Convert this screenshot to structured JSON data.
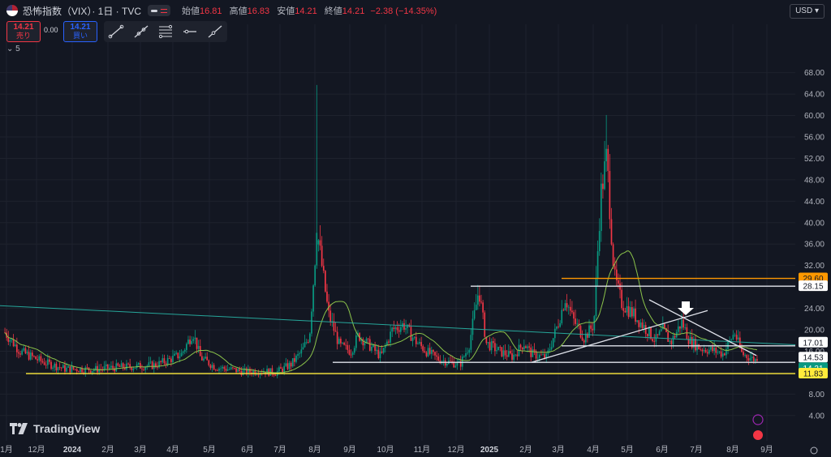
{
  "header": {
    "title": "恐怖指数（VIX）· 1日 · TVC",
    "ohlc": [
      {
        "label": "始値",
        "value": "16.81"
      },
      {
        "label": "高値",
        "value": "16.83"
      },
      {
        "label": "安値",
        "value": "14.21"
      },
      {
        "label": "終値",
        "value": "14.21"
      }
    ],
    "change": "−2.38 (−14.35%)",
    "currency": "USD"
  },
  "trade": {
    "sell_price": "14.21",
    "sell_label": "売り",
    "spread": "0.00",
    "buy_price": "14.21",
    "buy_label": "買い"
  },
  "indicator_toggle": "5",
  "logo_text": "TradingView",
  "colors": {
    "up": "#089981",
    "down": "#f23645",
    "ma": "#8bc34a",
    "trend": "#26a69a",
    "orange": "#ff9800",
    "yellow": "#ffeb3b"
  },
  "chart_data": {
    "type": "candlestick",
    "price_axis": {
      "ticks": [
        4,
        8,
        12,
        16,
        20,
        24,
        28,
        32,
        36,
        40,
        44,
        48,
        52,
        56,
        60,
        64,
        68
      ],
      "labels": [
        "4.00",
        "8.00",
        "12.00",
        "16.00",
        "20.00",
        "24.00",
        "28.00",
        "32.00",
        "36.00",
        "40.00",
        "44.00",
        "48.00",
        "52.00",
        "56.00",
        "60.00",
        "64.00",
        "68.00"
      ],
      "range": [
        1.4,
        74.0
      ]
    },
    "time_axis": [
      "1月",
      "12月",
      "2024",
      "2月",
      "3月",
      "4月",
      "5月",
      "6月",
      "7月",
      "8月",
      "9月",
      "10月",
      "11月",
      "12月",
      "2025",
      "2月",
      "3月",
      "4月",
      "5月",
      "6月",
      "7月",
      "8月",
      "9月"
    ],
    "price_labels": [
      {
        "value": 29.6,
        "text": "29.60",
        "style": "orange"
      },
      {
        "value": 28.15,
        "text": "28.15",
        "style": "white"
      },
      {
        "value": 17.01,
        "text": "17.01",
        "style": "white"
      },
      {
        "value": 14.53,
        "text": "14.53",
        "style": "white"
      },
      {
        "value": 14.21,
        "text": "14.21",
        "style": "last"
      },
      {
        "value": 11.83,
        "text": "11.83",
        "style": "yellow"
      }
    ],
    "levels": [
      {
        "value": 29.6,
        "start_month": "3月 2025",
        "end_month": "9月 2025"
      },
      {
        "value": 28.15,
        "start_month": "12月 2024",
        "end_month": "9月 2025"
      },
      {
        "value": 17.01,
        "start_month": "3月 2025",
        "end_month": "9月 2025"
      },
      {
        "value": 13.93,
        "start_month": "8月 2024",
        "end_month": "9月 2025"
      },
      {
        "value": 11.83,
        "start_month": "12月 2023",
        "end_month": "9月 2025"
      }
    ],
    "key_points": [
      {
        "date": "2024-08-05",
        "high": 65.7,
        "close": 38.6
      },
      {
        "date": "2024-12-18",
        "high": 28.3,
        "close": 27.6
      },
      {
        "date": "2025-04-08",
        "high": 60.1,
        "close": 52.3
      },
      {
        "date": "2025-08-22",
        "close": 14.21
      }
    ],
    "ma_series_name": "MA"
  }
}
